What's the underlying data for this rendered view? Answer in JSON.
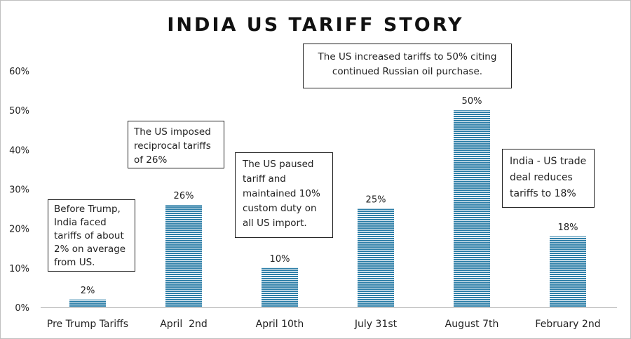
{
  "chart_data": {
    "type": "bar",
    "title": "INDIA US TARIFF STORY",
    "categories": [
      "Pre Trump Tariffs",
      "April  2nd",
      "April 10th",
      "July 31st",
      "August 7th",
      "February 2nd"
    ],
    "values": [
      2,
      26,
      10,
      25,
      50,
      18
    ],
    "data_labels": [
      "2%",
      "26%",
      "10%",
      "25%",
      "50%",
      "18%"
    ],
    "yticks": [
      "0%",
      "10%",
      "20%",
      "30%",
      "40%",
      "50%",
      "60%"
    ],
    "ylim": [
      0,
      60
    ],
    "xlabel": "",
    "ylabel": "",
    "grid": false,
    "bar_color": "#2e7fa8",
    "bar_stripe_color": "#ffffff",
    "annotations": [
      "Before Trump,\nIndia faced\ntariffs of about\n2% on average\nfrom US.",
      "The US imposed\nreciprocal tariffs\nof 26%",
      "The US paused\ntariff and\nmaintained 10%\ncustom duty on\nall US import.",
      "The US increased tariffs to 50% citing\ncontinued Russian oil purchase.",
      "India - US trade\ndeal reduces\ntariffs to 18%"
    ]
  }
}
